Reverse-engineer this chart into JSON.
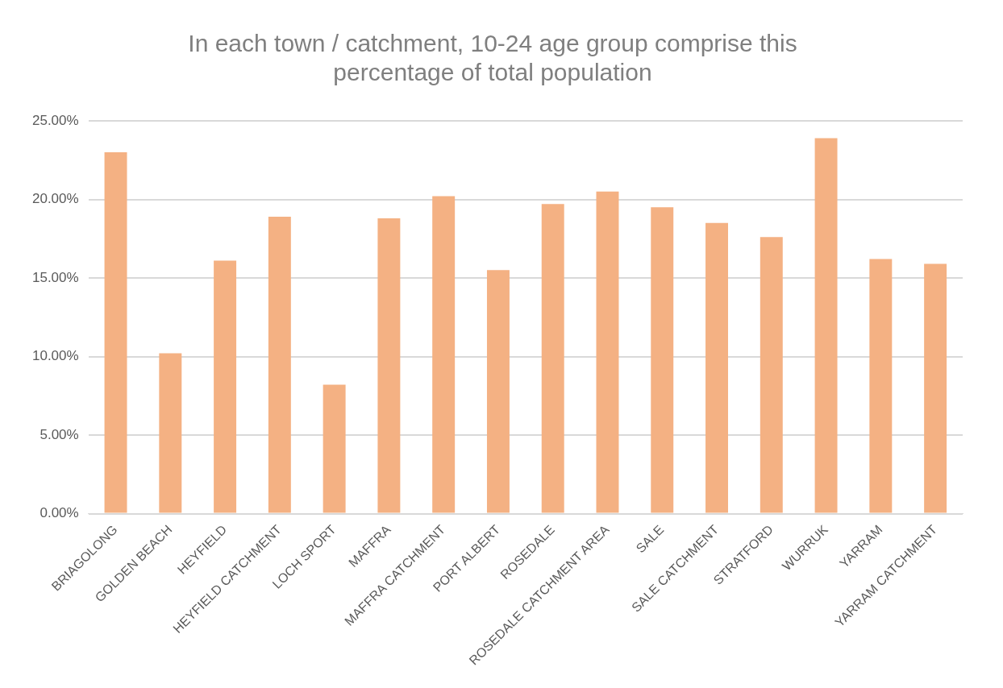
{
  "chart_data": {
    "type": "bar",
    "title": "In each town / catchment, 10-24 age group comprise this percentage of total population",
    "categories": [
      "BRIAGOLONG",
      "GOLDEN BEACH",
      "HEYFIELD",
      "HEYFIELD CATCHMENT",
      "LOCH SPORT",
      "MAFFRA",
      "MAFFRA CATCHMENT",
      "PORT ALBERT",
      "ROSEDALE",
      "ROSEDALE CATCHMENT AREA",
      "SALE",
      "SALE CATCHMENT",
      "STRATFORD",
      "WURRUK",
      "YARRAM",
      "YARRAM CATCHMENT"
    ],
    "values": [
      23.0,
      10.2,
      16.1,
      18.9,
      8.2,
      18.8,
      20.2,
      15.5,
      19.7,
      20.5,
      19.5,
      18.5,
      17.6,
      23.9,
      16.2,
      15.9
    ],
    "color": "#f4b183",
    "ylim": [
      0,
      25
    ],
    "yticks": [
      {
        "value": 0,
        "label": "0.00%"
      },
      {
        "value": 5,
        "label": "5.00%"
      },
      {
        "value": 10,
        "label": "10.00%"
      },
      {
        "value": 15,
        "label": "15.00%"
      },
      {
        "value": 20,
        "label": "20.00%"
      },
      {
        "value": 25,
        "label": "25.00%"
      }
    ],
    "grid": "y",
    "legend": false
  }
}
